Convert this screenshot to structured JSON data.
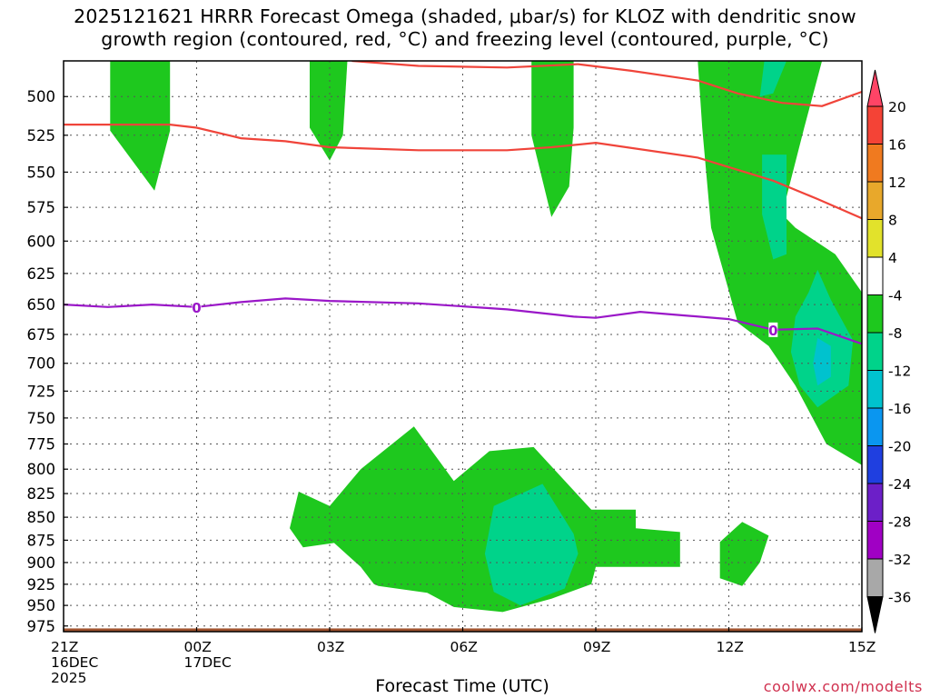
{
  "title": {
    "line1": "2025121621 HRRR Forecast Omega (shaded, μbar/s) for KLOZ with dendritic snow",
    "line2": "growth region (contoured, red, °C) and freezing level (contoured, purple, °C)"
  },
  "credit": "coolwx.com/modelts",
  "chart_data": {
    "type": "heatmap",
    "title": "2025121621 HRRR Forecast Omega (shaded, μbar/s) for KLOZ with dendritic snow growth region (contoured, red, °C) and freezing level (contoured, purple, °C)",
    "xlabel": "Forecast Time (UTC)",
    "ylabel": "",
    "xlim": [
      0,
      18
    ],
    "ylim": [
      982,
      478
    ],
    "yscale": "log-pressure",
    "x_ticks": [
      {
        "x": 0,
        "label": [
          "21Z",
          "16DEC",
          "2025"
        ]
      },
      {
        "x": 3,
        "label": [
          "00Z",
          "17DEC"
        ]
      },
      {
        "x": 6,
        "label": [
          "03Z"
        ]
      },
      {
        "x": 9,
        "label": [
          "06Z"
        ]
      },
      {
        "x": 12,
        "label": [
          "09Z"
        ]
      },
      {
        "x": 15,
        "label": [
          "12Z"
        ]
      },
      {
        "x": 18,
        "label": [
          "15Z"
        ]
      }
    ],
    "y_ticks": [
      500,
      525,
      550,
      575,
      600,
      625,
      650,
      675,
      700,
      725,
      750,
      775,
      800,
      825,
      850,
      875,
      900,
      925,
      950,
      975
    ],
    "grid": true,
    "colorbar": {
      "labels": [
        "20",
        "16",
        "12",
        "8",
        "4",
        "-4",
        "-8",
        "-12",
        "-16",
        "-20",
        "-24",
        "-28",
        "-32",
        "-36"
      ],
      "colors": [
        "#ff4466",
        "#f44336",
        "#f07a1f",
        "#e8a82b",
        "#e2e22b",
        "#ffffff",
        "#1ec81e",
        "#00d38a",
        "#00c2ce",
        "#0a96f0",
        "#1f3fe0",
        "#6c1fc8",
        "#a000c4",
        "#a8a8a8",
        "#000000"
      ]
    },
    "omega_regions": [
      {
        "level": "-4",
        "color": "#1ec81e",
        "points": [
          [
            1.05,
            478
          ],
          [
            2.4,
            478
          ],
          [
            2.4,
            522
          ],
          [
            2.05,
            563
          ],
          [
            1.05,
            522
          ]
        ]
      },
      {
        "level": "-4",
        "color": "#1ec81e",
        "points": [
          [
            5.55,
            478
          ],
          [
            6.4,
            478
          ],
          [
            6.3,
            525
          ],
          [
            6.0,
            542
          ],
          [
            5.55,
            520
          ]
        ]
      },
      {
        "level": "-4",
        "color": "#1ec81e",
        "points": [
          [
            10.55,
            478
          ],
          [
            11.5,
            478
          ],
          [
            11.5,
            520
          ],
          [
            11.4,
            560
          ],
          [
            11.0,
            582
          ],
          [
            10.55,
            525
          ]
        ]
      },
      {
        "level": "-4",
        "color": "#1ec81e",
        "points": [
          [
            14.3,
            478
          ],
          [
            17.1,
            478
          ],
          [
            16.7,
            520
          ],
          [
            16.2,
            580
          ],
          [
            16.5,
            590
          ],
          [
            17.4,
            610
          ],
          [
            18,
            640
          ],
          [
            18,
            796
          ],
          [
            17.2,
            775
          ],
          [
            16.5,
            720
          ],
          [
            15.9,
            685
          ],
          [
            15.2,
            665
          ],
          [
            14.6,
            590
          ],
          [
            14.4,
            520
          ]
        ]
      },
      {
        "level": "-4",
        "color": "#1ec81e",
        "points": [
          [
            5.3,
            823
          ],
          [
            6.0,
            838
          ],
          [
            6.7,
            800
          ],
          [
            7.9,
            758
          ],
          [
            8.8,
            812
          ],
          [
            9.6,
            782
          ],
          [
            10.6,
            778
          ],
          [
            11.9,
            842
          ],
          [
            12.9,
            842
          ],
          [
            12.9,
            862
          ],
          [
            13.9,
            866
          ],
          [
            13.9,
            905
          ],
          [
            12.0,
            905
          ],
          [
            11.9,
            925
          ],
          [
            11.0,
            942
          ],
          [
            9.9,
            958
          ],
          [
            8.8,
            952
          ],
          [
            8.2,
            935
          ],
          [
            7.1,
            927
          ],
          [
            7.0,
            925
          ],
          [
            6.7,
            905
          ],
          [
            6.1,
            878
          ],
          [
            5.4,
            883
          ],
          [
            5.1,
            862
          ]
        ]
      },
      {
        "level": "-4",
        "color": "#1ec81e",
        "points": [
          [
            15.3,
            855
          ],
          [
            15.9,
            870
          ],
          [
            15.7,
            900
          ],
          [
            15.3,
            927
          ],
          [
            14.8,
            918
          ],
          [
            14.8,
            877
          ]
        ]
      },
      {
        "level": "-8",
        "color": "#00d38a",
        "points": [
          [
            15.7,
            500
          ],
          [
            16.0,
            498
          ],
          [
            16.3,
            478
          ],
          [
            15.8,
            478
          ]
        ]
      },
      {
        "level": "-8",
        "color": "#00d38a",
        "points": [
          [
            15.75,
            538
          ],
          [
            16.3,
            538
          ],
          [
            16.3,
            610
          ],
          [
            16.0,
            614
          ],
          [
            15.75,
            580
          ]
        ]
      },
      {
        "level": "-8",
        "color": "#00d38a",
        "points": [
          [
            17.0,
            622
          ],
          [
            17.3,
            646
          ],
          [
            17.8,
            680
          ],
          [
            17.7,
            720
          ],
          [
            17.0,
            740
          ],
          [
            16.6,
            720
          ],
          [
            16.4,
            690
          ],
          [
            16.5,
            660
          ],
          [
            16.8,
            640
          ]
        ]
      },
      {
        "level": "-8",
        "color": "#00d38a",
        "points": [
          [
            9.7,
            838
          ],
          [
            10.8,
            815
          ],
          [
            11.5,
            868
          ],
          [
            11.6,
            890
          ],
          [
            11.3,
            930
          ],
          [
            10.3,
            950
          ],
          [
            9.7,
            934
          ],
          [
            9.5,
            890
          ]
        ]
      },
      {
        "level": "-12",
        "color": "#00c2ce",
        "points": [
          [
            17.0,
            678
          ],
          [
            17.3,
            685
          ],
          [
            17.3,
            712
          ],
          [
            17.0,
            720
          ],
          [
            16.9,
            700
          ]
        ]
      }
    ],
    "dgz_contours_C": [
      {
        "label": "upper",
        "x": [
          6.5,
          8.0,
          10.0,
          11.6,
          12.8,
          14.3,
          15.2,
          16.2,
          17.1,
          18.0
        ],
        "p": [
          478,
          481,
          482,
          480,
          484,
          490,
          498,
          504,
          506,
          497
        ]
      },
      {
        "label": "lower",
        "x": [
          0,
          1,
          2.4,
          3,
          4,
          5,
          6,
          8,
          10,
          11,
          12,
          14.3,
          16,
          17,
          18
        ],
        "p": [
          518,
          518,
          518,
          520,
          527,
          529,
          533,
          535,
          535,
          533,
          530,
          540,
          556,
          569,
          583
        ]
      }
    ],
    "freezing_level": {
      "value_C": 0,
      "label": "0",
      "x": [
        0,
        1,
        2,
        3,
        4,
        5,
        6,
        8,
        10,
        11.5,
        12,
        13,
        14,
        15,
        16,
        17,
        18
      ],
      "p": [
        650,
        652,
        650,
        652,
        648,
        645,
        647,
        649,
        654,
        660,
        661,
        656,
        659,
        662,
        671,
        670,
        683
      ]
    },
    "terrain_band": {
      "p_top": 978,
      "p_bottom": 982,
      "color": "#a0522d"
    }
  }
}
